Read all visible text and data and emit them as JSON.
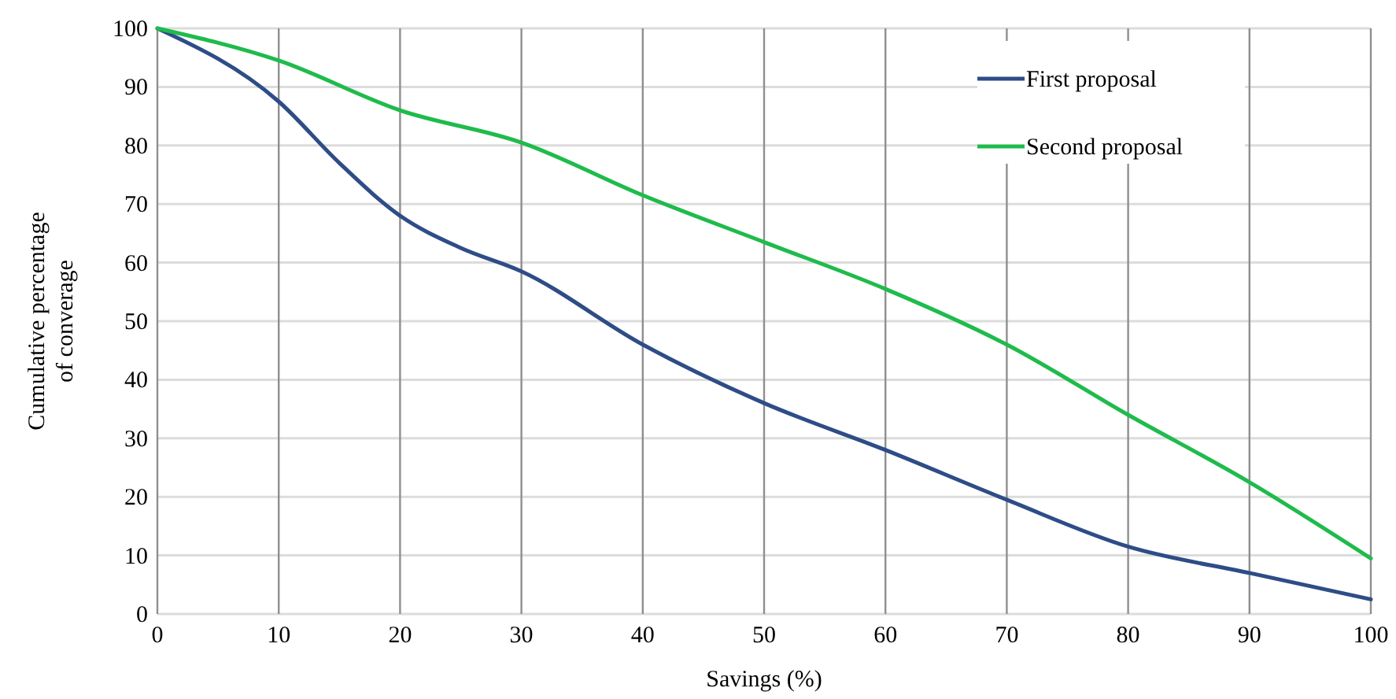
{
  "chart_data": {
    "type": "line",
    "xlabel": "Savings (%)",
    "ylabel": "Cumulative percentage of converage",
    "x": [
      0,
      10,
      15,
      20,
      25,
      30,
      40,
      50,
      60,
      70,
      80,
      90,
      100
    ],
    "series": [
      {
        "name": "First proposal",
        "color": "#2e4d87",
        "values": [
          100,
          87.5,
          77,
          68,
          62.5,
          58.5,
          46,
          36,
          28,
          19.5,
          11.5,
          7,
          2.5
        ]
      },
      {
        "name": "Second proposal",
        "color": "#1fbb4c",
        "x": [
          0,
          10,
          20,
          30,
          40,
          50,
          60,
          70,
          80,
          90,
          100
        ],
        "values": [
          100,
          94.5,
          86,
          80.5,
          71.5,
          63.5,
          55.5,
          46,
          34,
          22.5,
          9.5
        ]
      }
    ],
    "xlim": [
      0,
      100
    ],
    "xticks": [
      0,
      10,
      20,
      30,
      40,
      50,
      60,
      70,
      80,
      90,
      100
    ],
    "ylim": [
      0,
      100
    ],
    "yticks": [
      0,
      10,
      20,
      30,
      40,
      50,
      60,
      70,
      80,
      90,
      100
    ],
    "grid": true,
    "legend": "top right",
    "marker": "none",
    "line_style": "solid"
  }
}
